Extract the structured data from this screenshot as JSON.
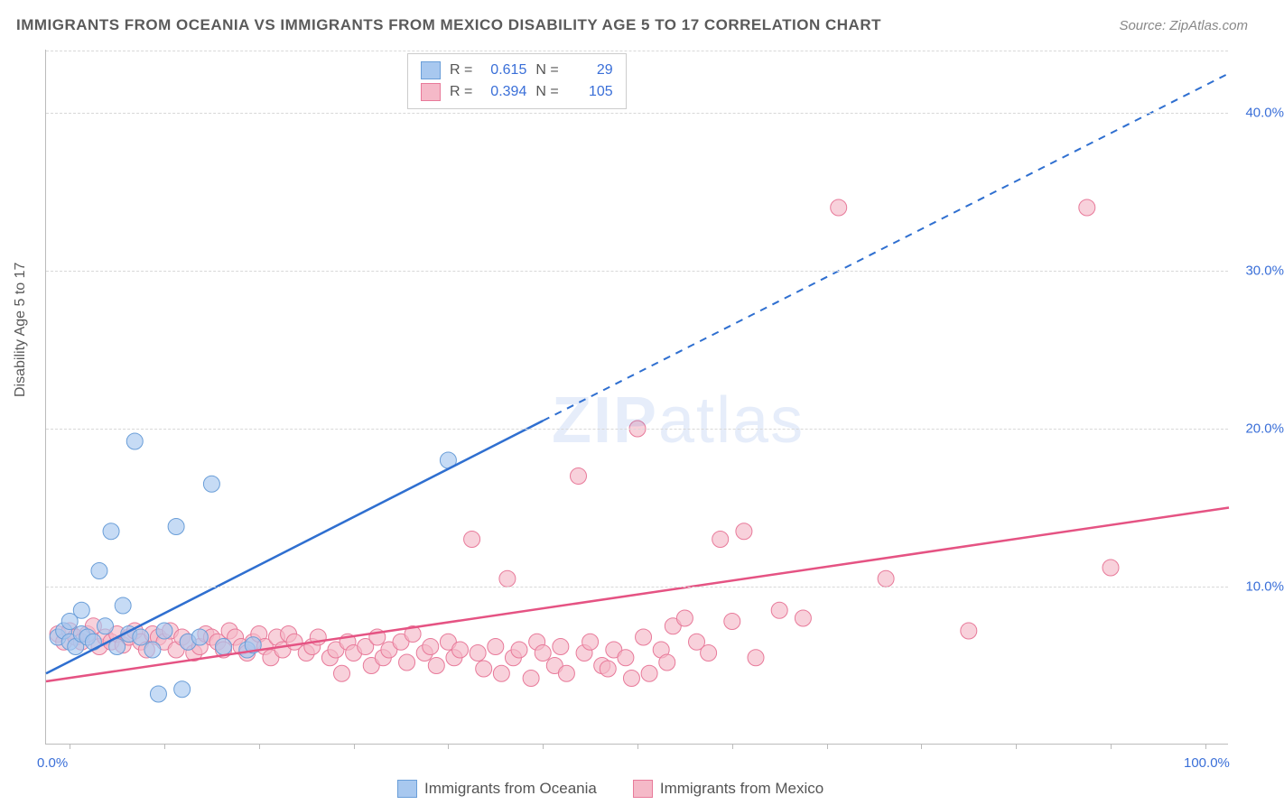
{
  "title": "IMMIGRANTS FROM OCEANIA VS IMMIGRANTS FROM MEXICO DISABILITY AGE 5 TO 17 CORRELATION CHART",
  "source": "Source: ZipAtlas.com",
  "y_axis_label": "Disability Age 5 to 17",
  "watermark": {
    "bold": "ZIP",
    "rest": "atlas"
  },
  "chart": {
    "type": "scatter",
    "xlim": [
      0,
      100
    ],
    "ylim": [
      0,
      44
    ],
    "x_ticks": [
      0,
      100
    ],
    "x_tick_labels": [
      "0.0%",
      "100.0%"
    ],
    "x_minor_ticks": [
      2,
      10,
      18,
      26,
      34,
      42,
      50,
      58,
      66,
      74,
      82,
      90,
      98
    ],
    "y_gridlines": [
      10,
      20,
      30,
      40
    ],
    "y_tick_labels": [
      "10.0%",
      "20.0%",
      "30.0%",
      "40.0%"
    ],
    "grid_color": "#d8d8d8",
    "tick_label_color": "#3a6fd8",
    "axis_label_color": "#5a5a5a",
    "background_color": "#ffffff",
    "series": [
      {
        "name": "Immigrants from Oceania",
        "color_fill": "#a8c8ef",
        "color_stroke": "#6a9ed8",
        "line_color": "#2f6fd0",
        "marker_radius": 9,
        "R": "0.615",
        "N": "29",
        "trend": {
          "x1": 0,
          "y1": 4.5,
          "x2": 42,
          "y2": 20.5,
          "dash_x2": 100,
          "dash_y2": 42.5
        },
        "points": [
          [
            1,
            6.8
          ],
          [
            1.5,
            7.2
          ],
          [
            2,
            7.8
          ],
          [
            2,
            6.5
          ],
          [
            2.5,
            6.2
          ],
          [
            3,
            7.0
          ],
          [
            3,
            8.5
          ],
          [
            3.5,
            6.8
          ],
          [
            4,
            6.5
          ],
          [
            4.5,
            11.0
          ],
          [
            5,
            7.5
          ],
          [
            5.5,
            13.5
          ],
          [
            6,
            6.2
          ],
          [
            6.5,
            8.8
          ],
          [
            7,
            7.0
          ],
          [
            7.5,
            19.2
          ],
          [
            8,
            6.8
          ],
          [
            9,
            6.0
          ],
          [
            9.5,
            3.2
          ],
          [
            10,
            7.2
          ],
          [
            11,
            13.8
          ],
          [
            11.5,
            3.5
          ],
          [
            12,
            6.5
          ],
          [
            13,
            6.8
          ],
          [
            14,
            16.5
          ],
          [
            15,
            6.2
          ],
          [
            17,
            6.0
          ],
          [
            17.5,
            6.3
          ],
          [
            34,
            18.0
          ]
        ]
      },
      {
        "name": "Immigrants from Mexico",
        "color_fill": "#f5b9c8",
        "color_stroke": "#e87a9a",
        "line_color": "#e55383",
        "marker_radius": 9,
        "R": "0.394",
        "N": "105",
        "trend": {
          "x1": 0,
          "y1": 4.0,
          "x2": 100,
          "y2": 15.0
        },
        "points": [
          [
            1,
            7.0
          ],
          [
            1.5,
            6.5
          ],
          [
            2,
            7.2
          ],
          [
            2.5,
            6.8
          ],
          [
            3,
            6.5
          ],
          [
            3.5,
            7.0
          ],
          [
            4,
            7.5
          ],
          [
            4.5,
            6.2
          ],
          [
            5,
            6.8
          ],
          [
            5.5,
            6.5
          ],
          [
            6,
            7.0
          ],
          [
            6.5,
            6.3
          ],
          [
            7,
            6.8
          ],
          [
            7.5,
            7.2
          ],
          [
            8,
            6.5
          ],
          [
            8.5,
            6.0
          ],
          [
            9,
            7.0
          ],
          [
            9.5,
            6.8
          ],
          [
            10,
            6.5
          ],
          [
            10.5,
            7.2
          ],
          [
            11,
            6.0
          ],
          [
            11.5,
            6.8
          ],
          [
            12,
            6.5
          ],
          [
            12.5,
            5.8
          ],
          [
            13,
            6.2
          ],
          [
            13.5,
            7.0
          ],
          [
            14,
            6.8
          ],
          [
            14.5,
            6.5
          ],
          [
            15,
            6.0
          ],
          [
            15.5,
            7.2
          ],
          [
            16,
            6.8
          ],
          [
            16.5,
            6.2
          ],
          [
            17,
            5.8
          ],
          [
            17.5,
            6.5
          ],
          [
            18,
            7.0
          ],
          [
            18.5,
            6.2
          ],
          [
            19,
            5.5
          ],
          [
            19.5,
            6.8
          ],
          [
            20,
            6.0
          ],
          [
            20.5,
            7.0
          ],
          [
            21,
            6.5
          ],
          [
            22,
            5.8
          ],
          [
            22.5,
            6.2
          ],
          [
            23,
            6.8
          ],
          [
            24,
            5.5
          ],
          [
            24.5,
            6.0
          ],
          [
            25,
            4.5
          ],
          [
            25.5,
            6.5
          ],
          [
            26,
            5.8
          ],
          [
            27,
            6.2
          ],
          [
            27.5,
            5.0
          ],
          [
            28,
            6.8
          ],
          [
            28.5,
            5.5
          ],
          [
            29,
            6.0
          ],
          [
            30,
            6.5
          ],
          [
            30.5,
            5.2
          ],
          [
            31,
            7.0
          ],
          [
            32,
            5.8
          ],
          [
            32.5,
            6.2
          ],
          [
            33,
            5.0
          ],
          [
            34,
            6.5
          ],
          [
            34.5,
            5.5
          ],
          [
            35,
            6.0
          ],
          [
            36,
            13.0
          ],
          [
            36.5,
            5.8
          ],
          [
            37,
            4.8
          ],
          [
            38,
            6.2
          ],
          [
            38.5,
            4.5
          ],
          [
            39,
            10.5
          ],
          [
            39.5,
            5.5
          ],
          [
            40,
            6.0
          ],
          [
            41,
            4.2
          ],
          [
            41.5,
            6.5
          ],
          [
            42,
            5.8
          ],
          [
            43,
            5.0
          ],
          [
            43.5,
            6.2
          ],
          [
            44,
            4.5
          ],
          [
            45,
            17.0
          ],
          [
            45.5,
            5.8
          ],
          [
            46,
            6.5
          ],
          [
            47,
            5.0
          ],
          [
            47.5,
            4.8
          ],
          [
            48,
            6.0
          ],
          [
            49,
            5.5
          ],
          [
            49.5,
            4.2
          ],
          [
            50,
            20.0
          ],
          [
            50.5,
            6.8
          ],
          [
            51,
            4.5
          ],
          [
            52,
            6.0
          ],
          [
            52.5,
            5.2
          ],
          [
            53,
            7.5
          ],
          [
            54,
            8.0
          ],
          [
            55,
            6.5
          ],
          [
            56,
            5.8
          ],
          [
            57,
            13.0
          ],
          [
            58,
            7.8
          ],
          [
            59,
            13.5
          ],
          [
            60,
            5.5
          ],
          [
            62,
            8.5
          ],
          [
            64,
            8.0
          ],
          [
            67,
            34.0
          ],
          [
            71,
            10.5
          ],
          [
            78,
            7.2
          ],
          [
            88,
            34.0
          ],
          [
            90,
            11.2
          ]
        ]
      }
    ]
  },
  "stats_box": {
    "rows": [
      {
        "swatch_fill": "#a8c8ef",
        "swatch_stroke": "#6a9ed8",
        "R": "0.615",
        "N": "29"
      },
      {
        "swatch_fill": "#f5b9c8",
        "swatch_stroke": "#e87a9a",
        "R": "0.394",
        "N": "105"
      }
    ],
    "R_label": "R =",
    "N_label": "N ="
  },
  "bottom_legend": [
    {
      "swatch_fill": "#a8c8ef",
      "swatch_stroke": "#6a9ed8",
      "label": "Immigrants from Oceania"
    },
    {
      "swatch_fill": "#f5b9c8",
      "swatch_stroke": "#e87a9a",
      "label": "Immigrants from Mexico"
    }
  ]
}
